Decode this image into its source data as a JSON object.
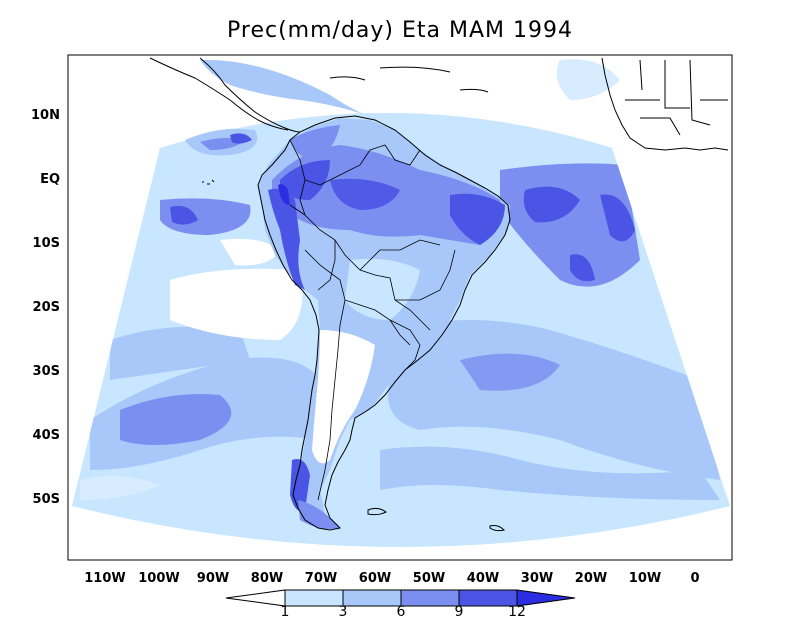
{
  "title": "Prec(mm/day) Eta MAM 1994",
  "lat_labels": [
    "10N",
    "EQ",
    "10S",
    "20S",
    "30S",
    "40S",
    "50S"
  ],
  "lon_labels": [
    "110W",
    "100W",
    "90W",
    "80W",
    "70W",
    "60W",
    "50W",
    "40W",
    "30W",
    "20W",
    "10W",
    "0"
  ],
  "colorbar": {
    "levels": [
      "1",
      "3",
      "6",
      "9",
      "12"
    ],
    "colors": [
      "#ffffff",
      "#c8e6ff",
      "#a8c8fa",
      "#7a8ff0",
      "#4a55e6",
      "#2a2ee0"
    ]
  },
  "palette": {
    "ocean_base": "#c8e6ff",
    "light": "#d8ecff",
    "mid": "#a8c8fa",
    "high": "#7a8ff0",
    "very_high": "#4a55e6",
    "extreme": "#2a2ee0",
    "coast": "#000000"
  }
}
